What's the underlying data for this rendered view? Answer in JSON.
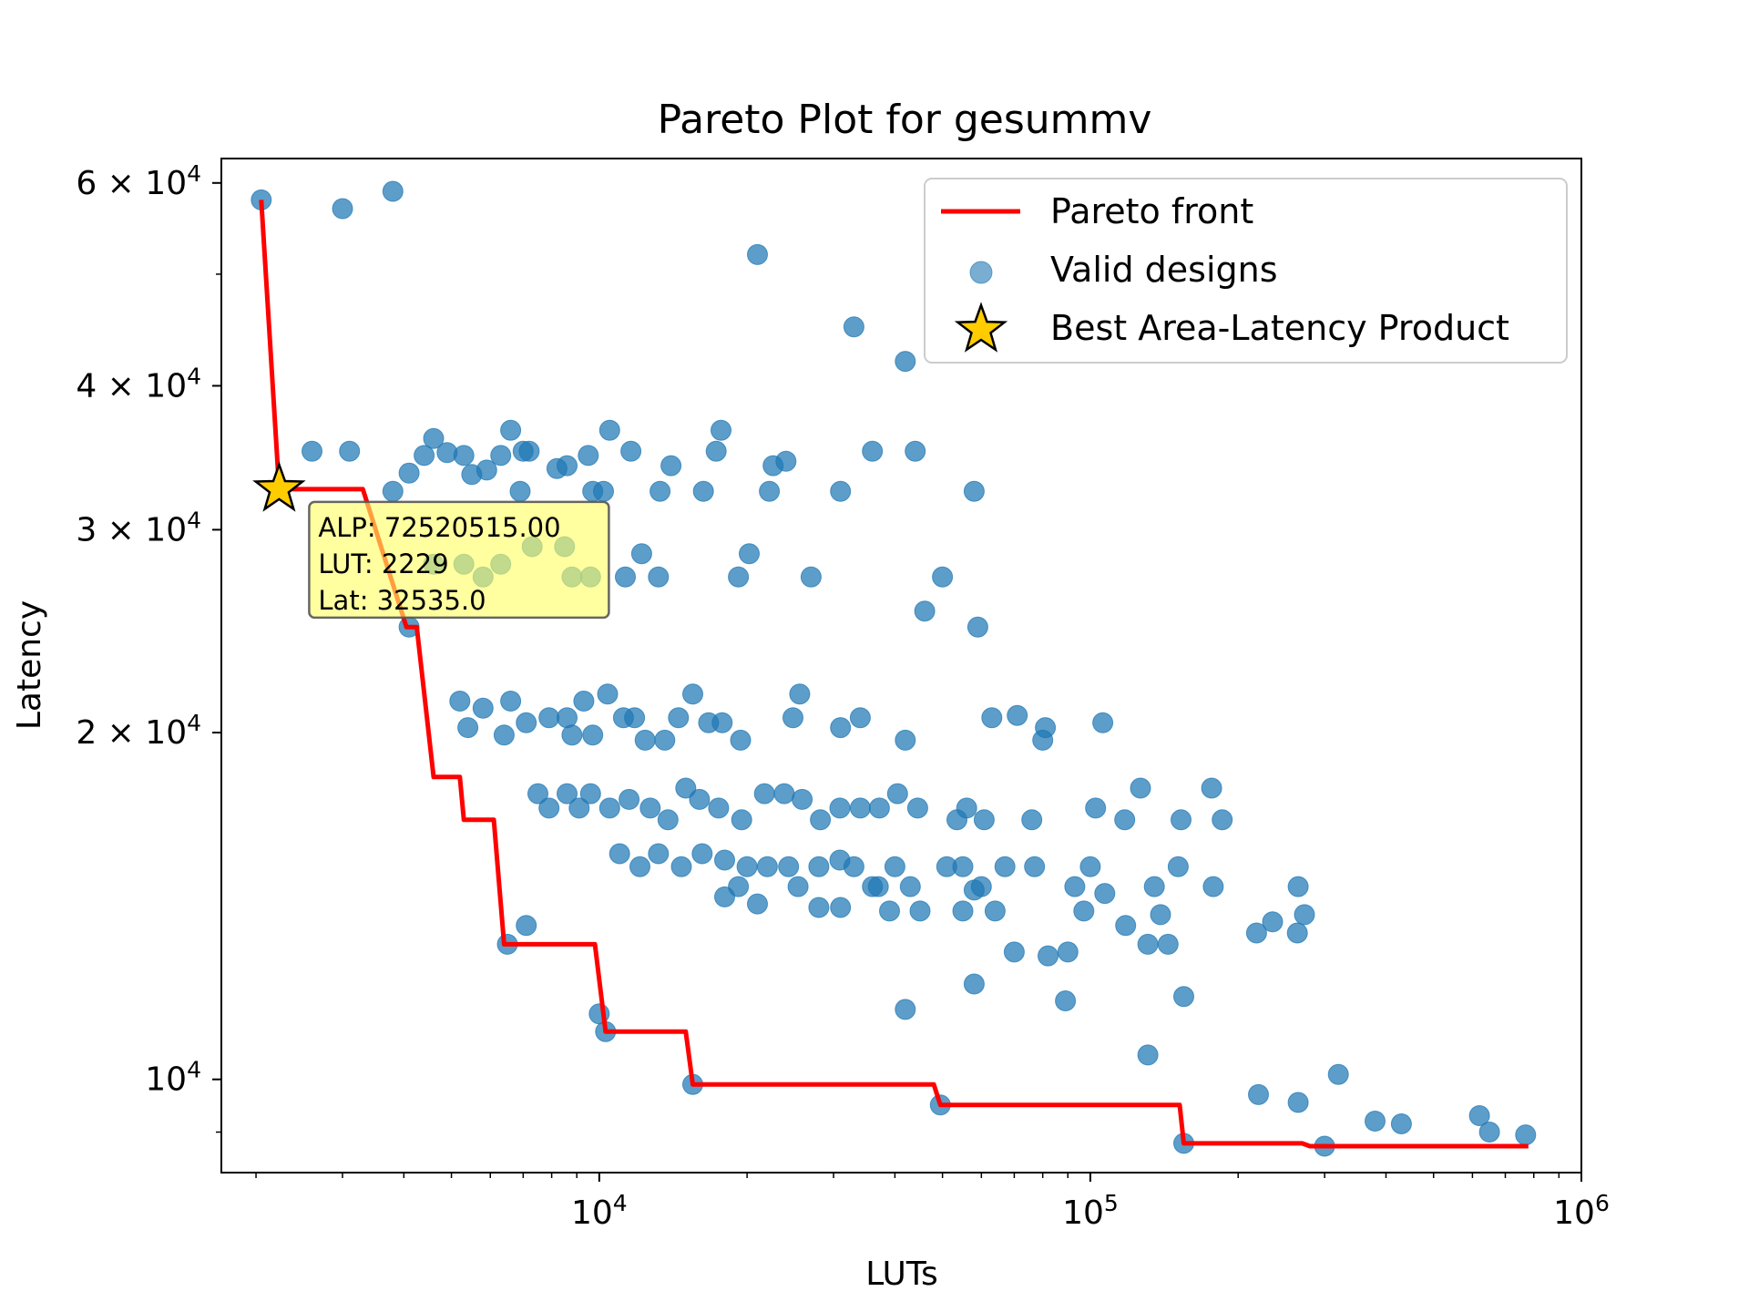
{
  "chart_data": {
    "type": "scatter",
    "title": "Pareto Plot for gesummv",
    "xlabel": "LUTs",
    "ylabel": "Latency",
    "xscale": "log",
    "yscale": "log",
    "xlim": [
      1700,
      1000000
    ],
    "ylim": [
      8300,
      63000
    ],
    "grid": false,
    "legend_position": "top-right",
    "x_ticks": [
      {
        "value": 10000,
        "base": "10",
        "exp": "4"
      },
      {
        "value": 100000,
        "base": "10",
        "exp": "5"
      },
      {
        "value": 1000000,
        "base": "10",
        "exp": "6"
      }
    ],
    "y_ticks": [
      {
        "value": 10000,
        "prefix": "",
        "base": "10",
        "exp": "4"
      },
      {
        "value": 20000,
        "prefix": "2 × ",
        "base": "10",
        "exp": "4"
      },
      {
        "value": 30000,
        "prefix": "3 × ",
        "base": "10",
        "exp": "4"
      },
      {
        "value": 40000,
        "prefix": "4 × ",
        "base": "10",
        "exp": "4"
      },
      {
        "value": 60000,
        "prefix": "6 × ",
        "base": "10",
        "exp": "4"
      }
    ],
    "legend": [
      {
        "label": "Pareto front",
        "kind": "line",
        "color": "#ff0000"
      },
      {
        "label": "Valid designs",
        "kind": "point",
        "color": "#1f77b4"
      },
      {
        "label": "Best Area-Latency Product",
        "kind": "star",
        "color": "#ffcc00"
      }
    ],
    "series": [
      {
        "name": "Pareto front",
        "kind": "step-line",
        "color": "#ff0000",
        "points": [
          [
            2050,
            58000
          ],
          [
            2229,
            32535
          ],
          [
            3300,
            32535
          ],
          [
            4050,
            24700
          ],
          [
            4250,
            24700
          ],
          [
            4600,
            18300
          ],
          [
            5200,
            18300
          ],
          [
            5300,
            16800
          ],
          [
            6100,
            16800
          ],
          [
            6400,
            13100
          ],
          [
            9800,
            13100
          ],
          [
            10300,
            11000
          ],
          [
            15000,
            11000
          ],
          [
            15500,
            9900
          ],
          [
            48000,
            9900
          ],
          [
            49500,
            9500
          ],
          [
            152000,
            9500
          ],
          [
            155000,
            8800
          ],
          [
            270000,
            8800
          ],
          [
            280000,
            8750
          ],
          [
            780000,
            8750
          ]
        ]
      },
      {
        "name": "Valid designs",
        "kind": "scatter",
        "color": "#1f77b4",
        "points": [
          [
            2050,
            58000
          ],
          [
            3000,
            57000
          ],
          [
            3800,
            59000
          ],
          [
            2229,
            32535
          ],
          [
            2600,
            35100
          ],
          [
            3100,
            35100
          ],
          [
            3800,
            32400
          ],
          [
            4100,
            33600
          ],
          [
            4400,
            34800
          ],
          [
            4600,
            36000
          ],
          [
            4900,
            35000
          ],
          [
            5300,
            34800
          ],
          [
            5500,
            33500
          ],
          [
            5900,
            33800
          ],
          [
            6300,
            34800
          ],
          [
            6600,
            36600
          ],
          [
            6900,
            32400
          ],
          [
            7000,
            35100
          ],
          [
            7200,
            35100
          ],
          [
            8200,
            33900
          ],
          [
            8600,
            34100
          ],
          [
            9500,
            34800
          ],
          [
            9700,
            32400
          ],
          [
            10200,
            32400
          ],
          [
            10500,
            36600
          ],
          [
            11600,
            35100
          ],
          [
            13300,
            32400
          ],
          [
            14000,
            34100
          ],
          [
            16300,
            32400
          ],
          [
            17300,
            35100
          ],
          [
            17700,
            36600
          ],
          [
            21000,
            52000
          ],
          [
            22200,
            32400
          ],
          [
            22600,
            34100
          ],
          [
            24000,
            34400
          ],
          [
            31000,
            32400
          ],
          [
            33000,
            45000
          ],
          [
            36000,
            35100
          ],
          [
            42000,
            42000
          ],
          [
            44000,
            35100
          ],
          [
            58000,
            32400
          ],
          [
            4100,
            24700
          ],
          [
            4600,
            28000
          ],
          [
            5300,
            28000
          ],
          [
            5800,
            27300
          ],
          [
            6300,
            28000
          ],
          [
            7300,
            29000
          ],
          [
            8500,
            29000
          ],
          [
            8800,
            27300
          ],
          [
            9600,
            27300
          ],
          [
            11300,
            27300
          ],
          [
            12200,
            28600
          ],
          [
            13200,
            27300
          ],
          [
            19200,
            27300
          ],
          [
            20200,
            28600
          ],
          [
            27000,
            27300
          ],
          [
            46000,
            25500
          ],
          [
            50000,
            27300
          ],
          [
            59000,
            24700
          ],
          [
            5200,
            21300
          ],
          [
            5400,
            20200
          ],
          [
            5800,
            21000
          ],
          [
            6400,
            19900
          ],
          [
            6600,
            21300
          ],
          [
            7100,
            20400
          ],
          [
            7900,
            20600
          ],
          [
            8600,
            20600
          ],
          [
            8800,
            19900
          ],
          [
            9300,
            21300
          ],
          [
            9700,
            19900
          ],
          [
            10400,
            21600
          ],
          [
            11200,
            20600
          ],
          [
            11800,
            20600
          ],
          [
            12400,
            19700
          ],
          [
            13600,
            19700
          ],
          [
            14500,
            20600
          ],
          [
            15500,
            21600
          ],
          [
            16700,
            20400
          ],
          [
            17800,
            20400
          ],
          [
            19400,
            19700
          ],
          [
            24800,
            20600
          ],
          [
            25600,
            21600
          ],
          [
            31000,
            20200
          ],
          [
            34000,
            20600
          ],
          [
            42000,
            19700
          ],
          [
            63000,
            20600
          ],
          [
            71000,
            20700
          ],
          [
            80000,
            19700
          ],
          [
            81000,
            20200
          ],
          [
            106000,
            20400
          ],
          [
            7500,
            17700
          ],
          [
            7900,
            17200
          ],
          [
            8600,
            17700
          ],
          [
            9100,
            17200
          ],
          [
            9600,
            17700
          ],
          [
            10500,
            17200
          ],
          [
            11500,
            17500
          ],
          [
            12700,
            17200
          ],
          [
            13800,
            16800
          ],
          [
            15000,
            17900
          ],
          [
            16000,
            17500
          ],
          [
            17500,
            17200
          ],
          [
            19500,
            16800
          ],
          [
            21700,
            17700
          ],
          [
            23800,
            17700
          ],
          [
            25900,
            17500
          ],
          [
            28200,
            16800
          ],
          [
            30900,
            17200
          ],
          [
            34000,
            17200
          ],
          [
            37200,
            17200
          ],
          [
            40500,
            17700
          ],
          [
            44500,
            17200
          ],
          [
            53500,
            16800
          ],
          [
            56000,
            17200
          ],
          [
            60800,
            16800
          ],
          [
            76000,
            16800
          ],
          [
            102500,
            17200
          ],
          [
            117500,
            16800
          ],
          [
            126500,
            17900
          ],
          [
            153000,
            16800
          ],
          [
            176600,
            17900
          ],
          [
            185600,
            16800
          ],
          [
            11000,
            15700
          ],
          [
            12100,
            15300
          ],
          [
            13200,
            15700
          ],
          [
            14700,
            15300
          ],
          [
            16200,
            15700
          ],
          [
            18000,
            15500
          ],
          [
            19200,
            14700
          ],
          [
            20000,
            15300
          ],
          [
            22000,
            15300
          ],
          [
            24300,
            15300
          ],
          [
            25400,
            14700
          ],
          [
            28000,
            15300
          ],
          [
            30900,
            15500
          ],
          [
            33000,
            15300
          ],
          [
            37000,
            14700
          ],
          [
            40000,
            15300
          ],
          [
            43000,
            14700
          ],
          [
            51000,
            15300
          ],
          [
            55000,
            15300
          ],
          [
            60000,
            14700
          ],
          [
            67000,
            15300
          ],
          [
            77000,
            15300
          ],
          [
            93000,
            14700
          ],
          [
            100000,
            15300
          ],
          [
            107000,
            14500
          ],
          [
            135000,
            14700
          ],
          [
            151000,
            15300
          ],
          [
            178000,
            14700
          ],
          [
            265000,
            14700
          ],
          [
            18000,
            14400
          ],
          [
            21000,
            14200
          ],
          [
            28000,
            14100
          ],
          [
            31000,
            14100
          ],
          [
            36000,
            14700
          ],
          [
            39000,
            14000
          ],
          [
            45000,
            14000
          ],
          [
            55000,
            14000
          ],
          [
            58000,
            14600
          ],
          [
            64000,
            14000
          ],
          [
            97000,
            14000
          ],
          [
            118000,
            13600
          ],
          [
            139000,
            13900
          ],
          [
            218000,
            13400
          ],
          [
            235000,
            13700
          ],
          [
            264000,
            13400
          ],
          [
            273000,
            13900
          ],
          [
            6500,
            13100
          ],
          [
            7100,
            13600
          ],
          [
            70000,
            12900
          ],
          [
            82000,
            12800
          ],
          [
            90000,
            12900
          ],
          [
            131000,
            13100
          ],
          [
            144000,
            13100
          ],
          [
            10000,
            11400
          ],
          [
            10300,
            11000
          ],
          [
            42000,
            11500
          ],
          [
            58000,
            12100
          ],
          [
            89000,
            11700
          ],
          [
            155000,
            11800
          ],
          [
            131000,
            10500
          ],
          [
            320000,
            10100
          ],
          [
            15500,
            9900
          ],
          [
            220000,
            9700
          ],
          [
            265000,
            9550
          ],
          [
            49500,
            9500
          ],
          [
            380000,
            9200
          ],
          [
            430000,
            9150
          ],
          [
            620000,
            9300
          ],
          [
            650000,
            9000
          ],
          [
            770000,
            8950
          ],
          [
            155000,
            8800
          ],
          [
            300000,
            8750
          ]
        ]
      },
      {
        "name": "Best Area-Latency Product",
        "kind": "marker",
        "color": "#ffcc00",
        "points": [
          [
            2229,
            32535
          ]
        ]
      }
    ],
    "annotations": [
      {
        "target": [
          2229,
          32535
        ],
        "lines": [
          "ALP: 72520515.00",
          "LUT: 2229",
          "Lat: 32535.0"
        ],
        "background": "#ffff66"
      }
    ]
  }
}
